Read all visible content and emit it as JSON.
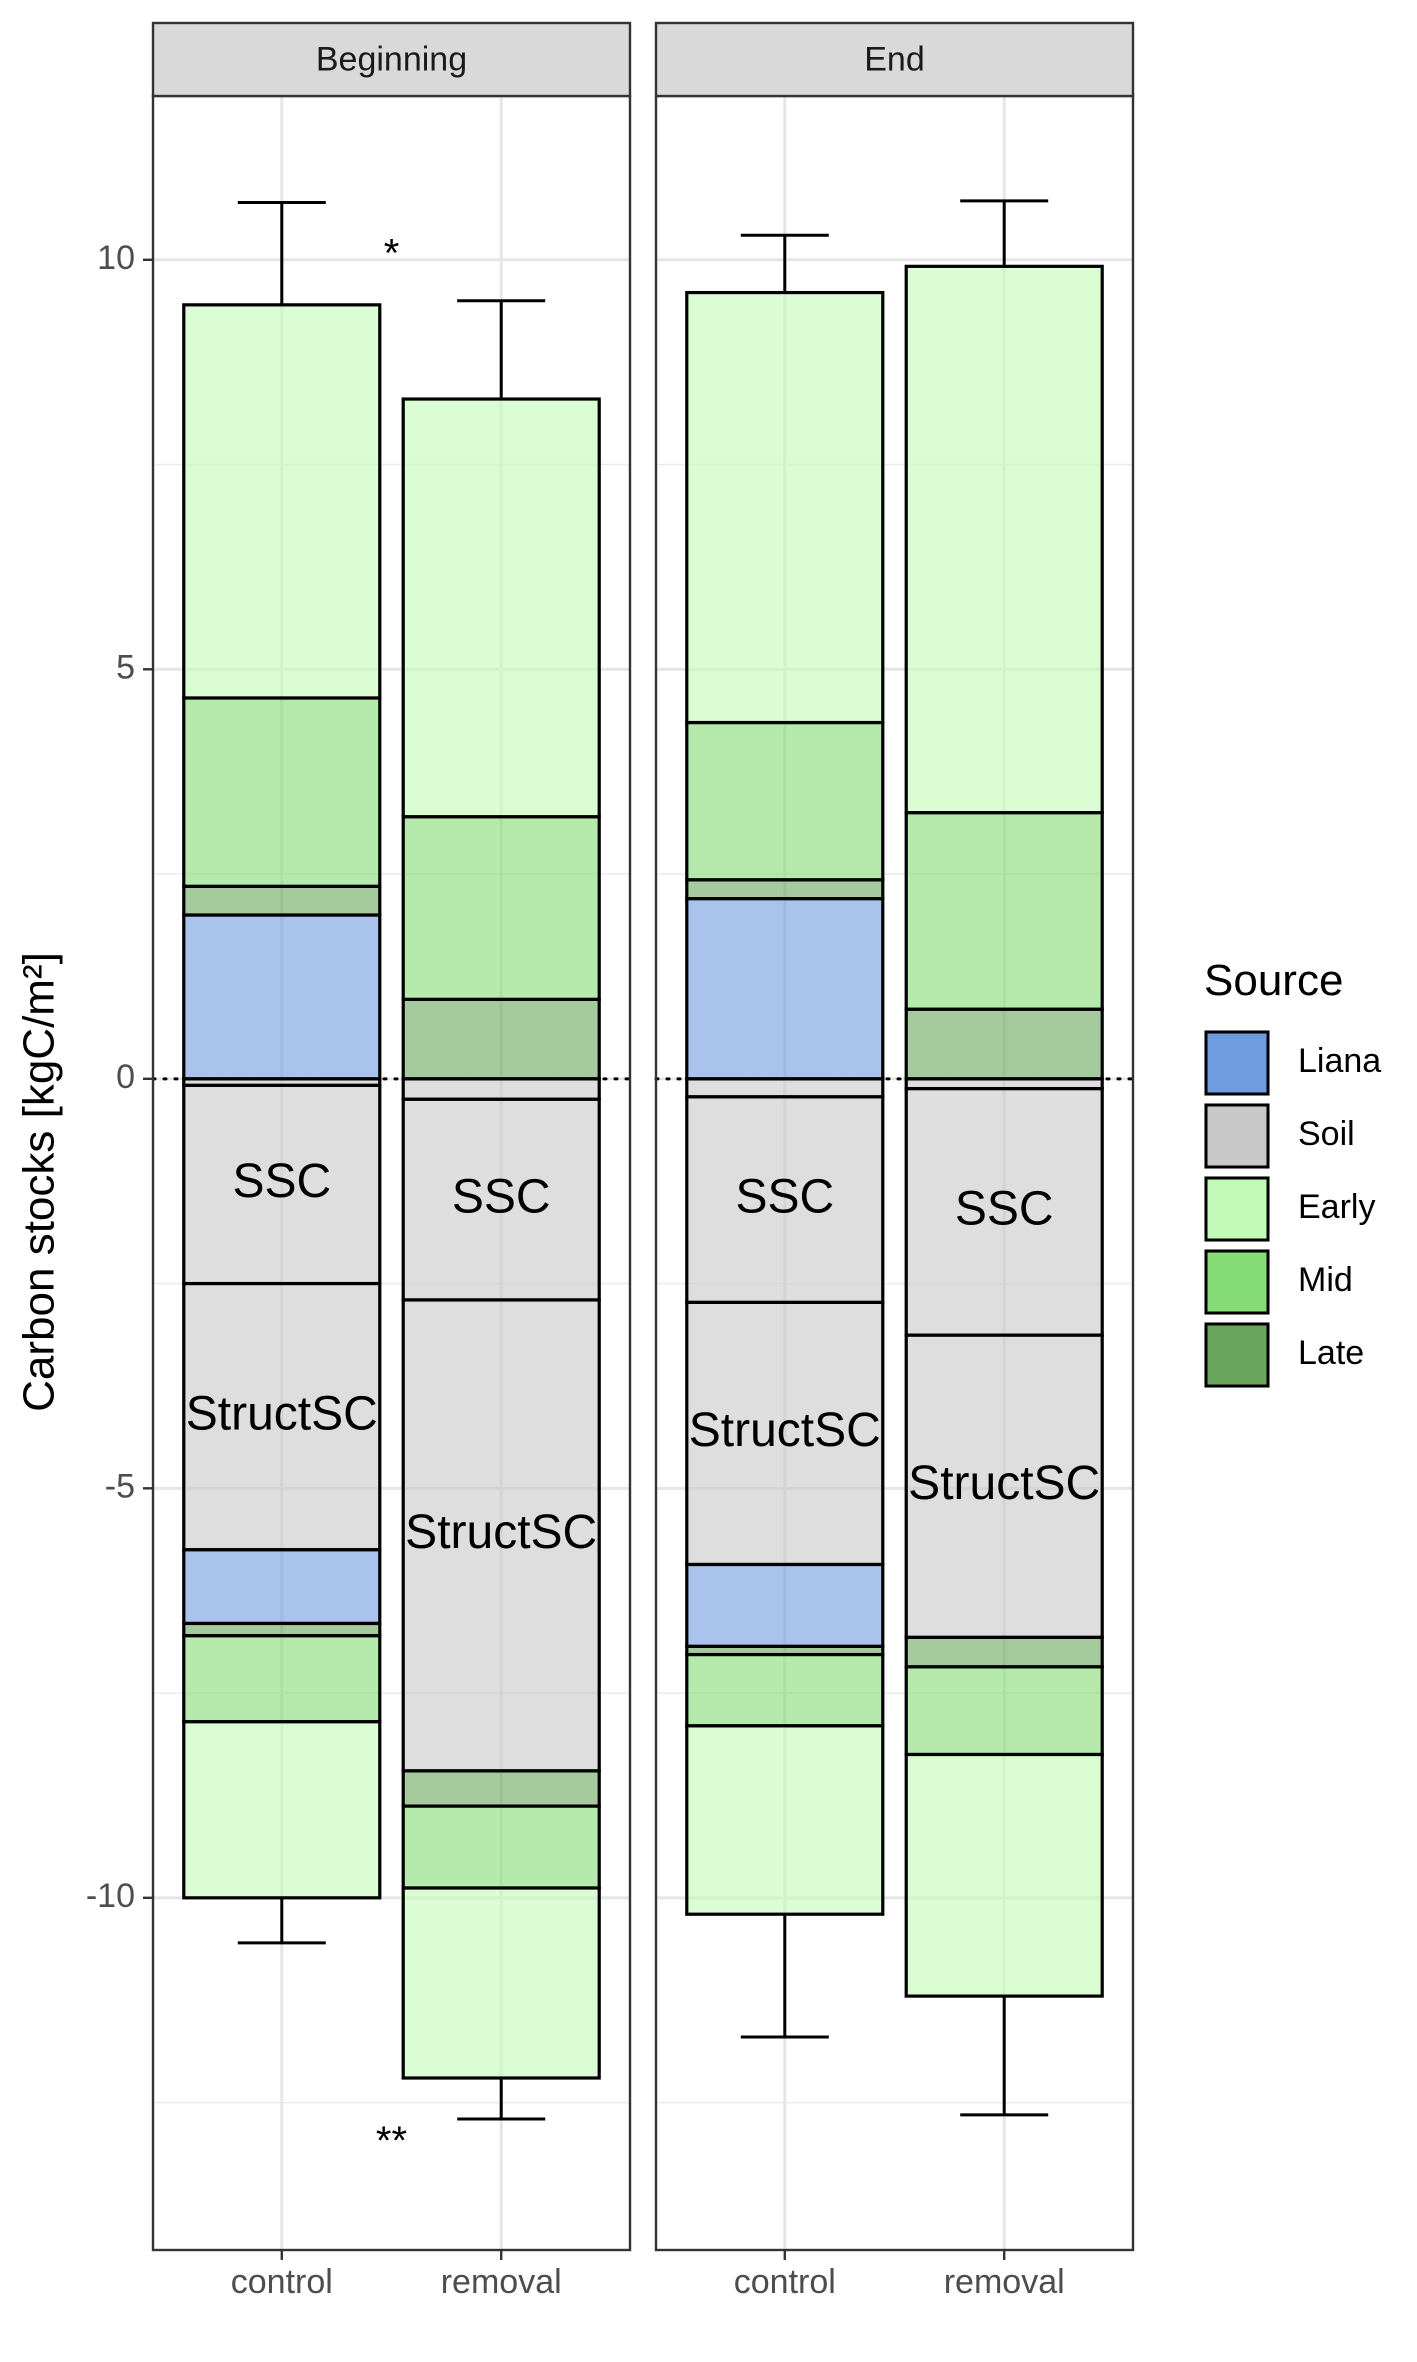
{
  "chart_data": {
    "type": "bar",
    "stacked": true,
    "diverging": true,
    "ylabel": "Carbon stocks [kgC/m²]",
    "ylim": [
      -14.3,
      12.0
    ],
    "y_ticks": [
      -10,
      -5,
      0,
      5,
      10
    ],
    "y_tick_labels": [
      "-10",
      "-5",
      "0",
      "5",
      "10"
    ],
    "grid": true,
    "zero_line": "dotted",
    "categories": [
      "control",
      "removal"
    ],
    "legend": {
      "title": "Source",
      "placement": "right",
      "entries": [
        {
          "name": "Liana",
          "color": "#6f9be0"
        },
        {
          "name": "Soil",
          "color": "#c8c8c8"
        },
        {
          "name": "Early",
          "color": "#c2fbb8"
        },
        {
          "name": "Mid",
          "color": "#86dc76"
        },
        {
          "name": "Late",
          "color": "#69a65b"
        }
      ]
    },
    "bar_alpha": 0.6,
    "panels": [
      {
        "strip": "Beginning",
        "bars": [
          {
            "category": "control",
            "segments": [
              {
                "source": "Soil",
                "y0": -0.08,
                "y1": 0.0,
                "label": ""
              },
              {
                "source": "Soil",
                "y0": -2.5,
                "y1": -0.08,
                "label": "SSC"
              },
              {
                "source": "Soil",
                "y0": -5.75,
                "y1": -2.5,
                "label": "StructSC"
              },
              {
                "source": "Liana",
                "y0": -6.65,
                "y1": -5.75,
                "label": ""
              },
              {
                "source": "Late",
                "y0": -6.8,
                "y1": -6.65,
                "label": ""
              },
              {
                "source": "Mid",
                "y0": -7.85,
                "y1": -6.8,
                "label": ""
              },
              {
                "source": "Early",
                "y0": -10.0,
                "y1": -7.85,
                "label": ""
              },
              {
                "source": "Liana",
                "y0": 0.0,
                "y1": 2.0,
                "label": ""
              },
              {
                "source": "Late",
                "y0": 2.0,
                "y1": 2.35,
                "label": ""
              },
              {
                "source": "Mid",
                "y0": 2.35,
                "y1": 4.65,
                "label": ""
              },
              {
                "source": "Early",
                "y0": 4.65,
                "y1": 9.45,
                "label": ""
              }
            ],
            "error_top": 10.7,
            "error_bottom": -10.55
          },
          {
            "category": "removal",
            "segments": [
              {
                "source": "Soil",
                "y0": -0.25,
                "y1": 0.0,
                "label": ""
              },
              {
                "source": "Soil",
                "y0": -2.7,
                "y1": -0.25,
                "label": "SSC"
              },
              {
                "source": "Soil",
                "y0": -8.45,
                "y1": -2.7,
                "label": "StructSC"
              },
              {
                "source": "Late",
                "y0": -8.88,
                "y1": -8.45,
                "label": ""
              },
              {
                "source": "Mid",
                "y0": -9.88,
                "y1": -8.88,
                "label": ""
              },
              {
                "source": "Early",
                "y0": -12.2,
                "y1": -9.88,
                "label": ""
              },
              {
                "source": "Late",
                "y0": 0.0,
                "y1": 0.97,
                "label": ""
              },
              {
                "source": "Mid",
                "y0": 0.97,
                "y1": 3.2,
                "label": ""
              },
              {
                "source": "Early",
                "y0": 3.2,
                "y1": 8.3,
                "label": ""
              }
            ],
            "error_top": 9.5,
            "error_bottom": -12.7
          }
        ],
        "annotations": [
          {
            "text": "*",
            "x_between": true,
            "y": 10.05
          },
          {
            "text": "**",
            "x_between": true,
            "y": -13.0
          }
        ]
      },
      {
        "strip": "End",
        "bars": [
          {
            "category": "control",
            "segments": [
              {
                "source": "Soil",
                "y0": -0.22,
                "y1": 0.0,
                "label": ""
              },
              {
                "source": "Soil",
                "y0": -2.73,
                "y1": -0.22,
                "label": "SSC"
              },
              {
                "source": "Soil",
                "y0": -5.93,
                "y1": -2.73,
                "label": "StructSC"
              },
              {
                "source": "Liana",
                "y0": -6.93,
                "y1": -5.93,
                "label": ""
              },
              {
                "source": "Late",
                "y0": -7.03,
                "y1": -6.93,
                "label": ""
              },
              {
                "source": "Mid",
                "y0": -7.9,
                "y1": -7.03,
                "label": ""
              },
              {
                "source": "Early",
                "y0": -10.2,
                "y1": -7.9,
                "label": ""
              },
              {
                "source": "Liana",
                "y0": 0.0,
                "y1": 2.2,
                "label": ""
              },
              {
                "source": "Late",
                "y0": 2.2,
                "y1": 2.43,
                "label": ""
              },
              {
                "source": "Mid",
                "y0": 2.43,
                "y1": 4.35,
                "label": ""
              },
              {
                "source": "Early",
                "y0": 4.35,
                "y1": 9.6,
                "label": ""
              }
            ],
            "error_top": 10.3,
            "error_bottom": -11.7
          },
          {
            "category": "removal",
            "segments": [
              {
                "source": "Soil",
                "y0": -0.12,
                "y1": 0.0,
                "label": ""
              },
              {
                "source": "Soil",
                "y0": -3.13,
                "y1": -0.12,
                "label": "SSC"
              },
              {
                "source": "Soil",
                "y0": -6.82,
                "y1": -3.13,
                "label": "StructSC"
              },
              {
                "source": "Late",
                "y0": -7.18,
                "y1": -6.82,
                "label": ""
              },
              {
                "source": "Mid",
                "y0": -8.25,
                "y1": -7.18,
                "label": ""
              },
              {
                "source": "Early",
                "y0": -11.2,
                "y1": -8.25,
                "label": ""
              },
              {
                "source": "Late",
                "y0": 0.0,
                "y1": 0.85,
                "label": ""
              },
              {
                "source": "Mid",
                "y0": 0.85,
                "y1": 3.25,
                "label": ""
              },
              {
                "source": "Early",
                "y0": 3.25,
                "y1": 9.92,
                "label": ""
              }
            ],
            "error_top": 10.72,
            "error_bottom": -12.65
          }
        ],
        "annotations": []
      }
    ]
  }
}
